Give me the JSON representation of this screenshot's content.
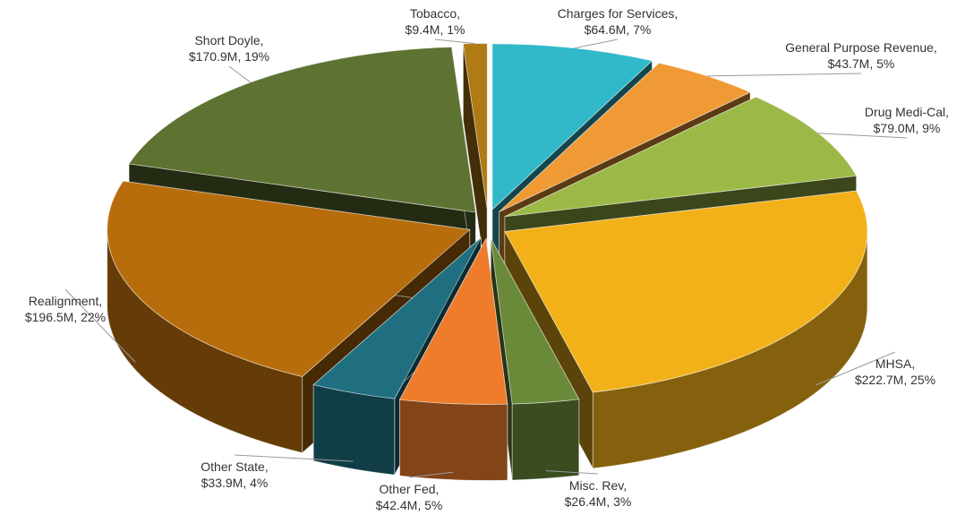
{
  "chart_data": {
    "type": "pie",
    "style": "3d-exploded",
    "units": "$M",
    "slices": [
      {
        "name": "Charges for Services",
        "value": 64.6,
        "percent": 7,
        "label_line1": "Charges for Services,",
        "label_line2": "$64.6M, 7%",
        "color": "#31b9c9",
        "position": "top-right"
      },
      {
        "name": "General Purpose Revenue",
        "value": 43.7,
        "percent": 5,
        "label_line1": "General Purpose Revenue,",
        "label_line2": "$43.7M, 5%",
        "color": "#ef9a35",
        "position": "right"
      },
      {
        "name": "Drug Medi-Cal",
        "value": 79.0,
        "percent": 9,
        "label_line1": "Drug Medi-Cal,",
        "label_line2": "$79.0M, 9%",
        "color": "#9cb948",
        "position": "right"
      },
      {
        "name": "MHSA",
        "value": 222.7,
        "percent": 25,
        "label_line1": "MHSA,",
        "label_line2": "$222.7M, 25%",
        "color": "#f2b119",
        "position": "bottom-right"
      },
      {
        "name": "Misc. Rev",
        "value": 26.4,
        "percent": 3,
        "label_line1": "Misc. Rev,",
        "label_line2": "$26.4M, 3%",
        "color": "#6a8a3a",
        "position": "bottom"
      },
      {
        "name": "Other Fed",
        "value": 42.4,
        "percent": 5,
        "label_line1": "Other Fed,",
        "label_line2": "$42.4M, 5%",
        "color": "#ee7c2b",
        "position": "bottom"
      },
      {
        "name": "Other State",
        "value": 33.9,
        "percent": 4,
        "label_line1": "Other State,",
        "label_line2": "$33.9M, 4%",
        "color": "#1f6f80",
        "position": "bottom-left"
      },
      {
        "name": "Realignment",
        "value": 196.5,
        "percent": 22,
        "label_line1": "Realignment,",
        "label_line2": "$196.5M, 22%",
        "color": "#b86d0c",
        "position": "left"
      },
      {
        "name": "Short Doyle",
        "value": 170.9,
        "percent": 19,
        "label_line1": "Short Doyle,",
        "label_line2": "$170.9M, 19%",
        "color": "#5e7232",
        "position": "top-left"
      },
      {
        "name": "Tobacco",
        "value": 9.4,
        "percent": 1,
        "label_line1": "Tobacco,",
        "label_line2": "$9.4M, 1%",
        "color": "#b07a14",
        "position": "top"
      }
    ]
  }
}
